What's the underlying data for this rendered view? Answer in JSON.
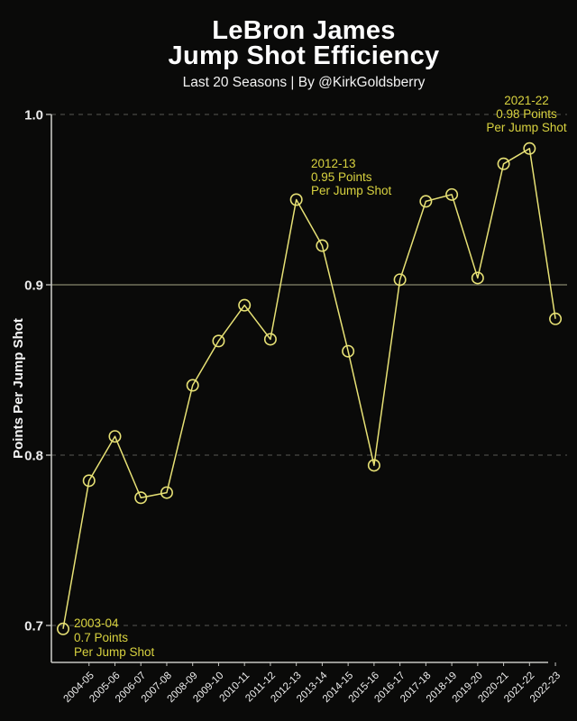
{
  "header": {
    "title_line1": "LeBron James",
    "title_line2": "Jump Shot Efficiency",
    "subtitle": "Last 20 Seasons | By @KirkGoldsberry"
  },
  "chart_data": {
    "type": "line",
    "title": "LeBron James Jump Shot Efficiency",
    "subtitle": "Last 20 Seasons | By @KirkGoldsberry",
    "xlabel": "",
    "ylabel": "Points Per Jump Shot",
    "series_name": "Points per jump shot",
    "categories": [
      "2003-04",
      "2004-05",
      "2005-06",
      "2006-07",
      "2007-08",
      "2008-09",
      "2009-10",
      "2010-11",
      "2011-12",
      "2012-13",
      "2013-14",
      "2014-15",
      "2015-16",
      "2016-17",
      "2017-18",
      "2018-19",
      "2019-20",
      "2020-21",
      "2021-22",
      "2022-23"
    ],
    "values": [
      0.698,
      0.785,
      0.811,
      0.775,
      0.778,
      0.841,
      0.867,
      0.888,
      0.868,
      0.95,
      0.923,
      0.861,
      0.794,
      0.903,
      0.949,
      0.953,
      0.904,
      0.971,
      0.98,
      0.88
    ],
    "x_tick_labels": [
      "2004-05",
      "2005-06",
      "2006-07",
      "2007-08",
      "2008-09",
      "2009-10",
      "2010-11",
      "2011-12",
      "2012-13",
      "2013-14",
      "2014-15",
      "2015-16",
      "2016-17",
      "2017-18",
      "2018-19",
      "2019-20",
      "2020-21",
      "2021-22",
      "2022-23"
    ],
    "yticks": [
      0.7,
      0.8,
      0.9,
      1.0
    ],
    "ylim": [
      0.7,
      1.0
    ],
    "grid": "dashed horizontal gridlines at 0.7, 0.8, 1.0",
    "reference_line_y": 0.9,
    "legend": "none",
    "marker": "open-circle",
    "annotations": [
      {
        "season": "2003-04",
        "value": 0.7,
        "lines": [
          "2003-04",
          "0.7 Points",
          "Per Jump Shot"
        ],
        "align": "left"
      },
      {
        "season": "2012-13",
        "value": 0.95,
        "lines": [
          "2012-13",
          "0.95 Points",
          "Per Jump Shot"
        ],
        "align": "left"
      },
      {
        "season": "2021-22",
        "value": 0.98,
        "lines": [
          "2021-22",
          "0.98 Points",
          "Per Jump Shot"
        ],
        "align": "center"
      }
    ],
    "colors": {
      "background": "#0a0a09",
      "title": "#ffffff",
      "line": "#e7e175",
      "marker": "#e7e175",
      "annotation_text": "#d8d23f",
      "axis_line": "#c6c6c2",
      "tick_text": "#ededed",
      "grid_dashed": "#494944",
      "reference_line": "#73725c"
    }
  }
}
